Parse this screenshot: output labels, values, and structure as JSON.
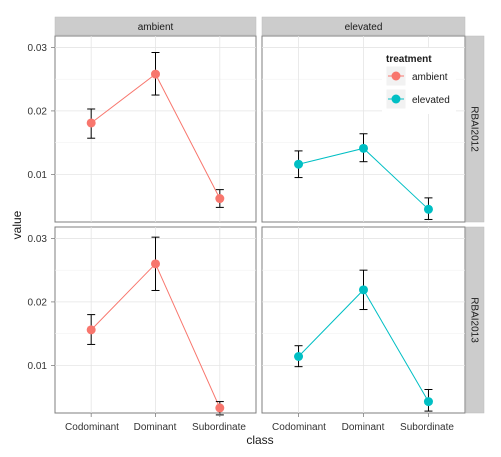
{
  "chart_data": {
    "type": "line",
    "xlabel": "class",
    "ylabel": "value",
    "categories": [
      "Codominant",
      "Dominant",
      "Subordinate"
    ],
    "column_facets": [
      "ambient",
      "elevated"
    ],
    "row_facets": [
      "RBAI2012",
      "RBAI2013"
    ],
    "yticks": [
      "0.01",
      "0.02",
      "0.03"
    ],
    "ylim": [
      0.0025,
      0.0318
    ],
    "grid": true,
    "legend": {
      "title": "treatment",
      "position": "top-right inside",
      "entries": [
        {
          "label": "ambient",
          "color": "#F8766D"
        },
        {
          "label": "elevated",
          "color": "#00BFC4"
        }
      ]
    },
    "panels": [
      {
        "row": "RBAI2012",
        "col": "ambient",
        "series": "ambient",
        "color": "#F8766D",
        "values": [
          0.0181,
          0.0258,
          0.0062
        ],
        "err_low": [
          0.0157,
          0.0225,
          0.0048
        ],
        "err_high": [
          0.0203,
          0.0292,
          0.0076
        ]
      },
      {
        "row": "RBAI2012",
        "col": "elevated",
        "series": "elevated",
        "color": "#00BFC4",
        "values": [
          0.0116,
          0.0141,
          0.0045
        ],
        "err_low": [
          0.0095,
          0.012,
          0.0029
        ],
        "err_high": [
          0.0137,
          0.0164,
          0.0063
        ]
      },
      {
        "row": "RBAI2013",
        "col": "ambient",
        "series": "ambient",
        "color": "#F8766D",
        "values": [
          0.0156,
          0.026,
          0.0033
        ],
        "err_low": [
          0.0133,
          0.0218,
          0.0022
        ],
        "err_high": [
          0.018,
          0.0302,
          0.0043
        ]
      },
      {
        "row": "RBAI2013",
        "col": "elevated",
        "series": "elevated",
        "color": "#00BFC4",
        "values": [
          0.0114,
          0.0219,
          0.0043
        ],
        "err_low": [
          0.0098,
          0.0188,
          0.0028
        ],
        "err_high": [
          0.0131,
          0.025,
          0.0062
        ]
      }
    ]
  }
}
